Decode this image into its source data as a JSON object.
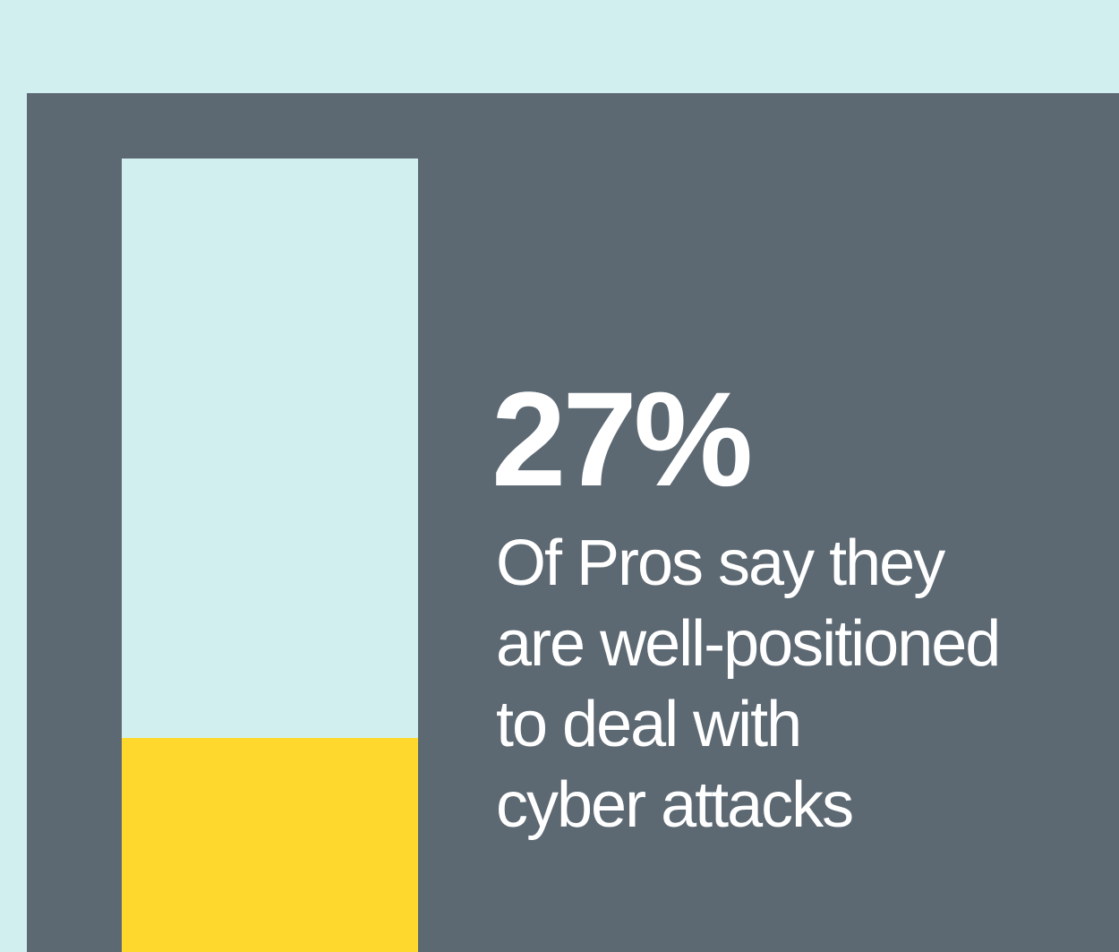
{
  "colors": {
    "background": "#d2eff0",
    "panel": "#5c6872",
    "bar_track": "#d2eff0",
    "bar_fill": "#ffd82e",
    "text": "#ffffff"
  },
  "stat": {
    "value_label": "27%",
    "caption_lines": [
      "Of Pros say they",
      "are well-positioned",
      "to deal with",
      "cyber attacks"
    ]
  },
  "chart_data": {
    "type": "bar",
    "categories": [
      ""
    ],
    "values": [
      27
    ],
    "ylim": [
      0,
      100
    ],
    "title": "",
    "xlabel": "",
    "ylabel": "",
    "grid": false,
    "legend": "none",
    "orientation": "vertical",
    "fill_fraction": 0.27
  }
}
